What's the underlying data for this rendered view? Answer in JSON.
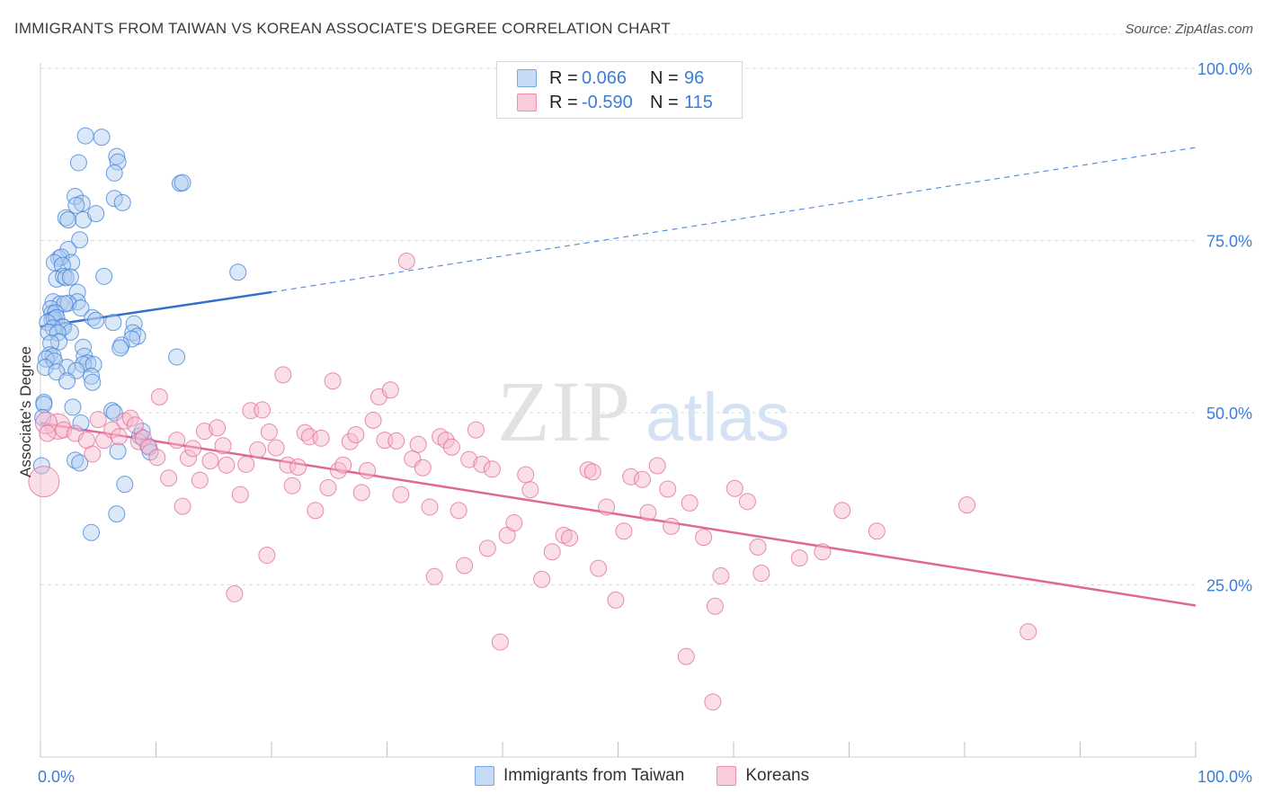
{
  "header": {
    "title": "IMMIGRANTS FROM TAIWAN VS KOREAN ASSOCIATE'S DEGREE CORRELATION CHART",
    "source": "Source: ZipAtlas.com"
  },
  "watermark": {
    "zip": "ZIP",
    "atlas": "atlas"
  },
  "legend": {
    "r_label": "R =",
    "n_label": "N =",
    "rows": [
      {
        "r": "0.066",
        "n": "96",
        "color": "#7aa6e0",
        "fill": "#c6dbf5"
      },
      {
        "r": "-0.590",
        "n": "115",
        "color": "#eb8fac",
        "fill": "#f9ccda"
      }
    ]
  },
  "bottom_legend": {
    "items": [
      {
        "label": "Immigrants from Taiwan",
        "color": "#7aa6e0",
        "fill": "#c6dbf5"
      },
      {
        "label": "Koreans",
        "color": "#eb8fac",
        "fill": "#f9ccda"
      }
    ]
  },
  "chart_data": {
    "type": "scatter",
    "ylabel": "Associate's Degree",
    "xlabel": "",
    "xlim": [
      0,
      100
    ],
    "ylim": [
      0,
      105
    ],
    "x_tick_labels": [
      "0.0%",
      "100.0%"
    ],
    "y_ticks": [
      25,
      50,
      75,
      100
    ],
    "y_tick_labels": [
      "25.0%",
      "50.0%",
      "75.0%",
      "100.0%"
    ],
    "grid": "horizontal dashed",
    "legend_position": "top-center",
    "series": [
      {
        "name": "Immigrants from Taiwan",
        "color": "#3b7dd8",
        "fill": "#aecbef",
        "stats": {
          "R": 0.066,
          "N": 96
        },
        "trend": {
          "x0": 0,
          "y0": 62.5,
          "x1": 20,
          "y1": 67.5,
          "x_extend": 100,
          "y_extend": 88.5
        },
        "points": [
          [
            5.3,
            90.0
          ],
          [
            3.9,
            90.2
          ],
          [
            6.6,
            87.2
          ],
          [
            3.3,
            86.3
          ],
          [
            6.7,
            86.4
          ],
          [
            6.4,
            84.8
          ],
          [
            12.1,
            83.3
          ],
          [
            12.3,
            83.4
          ],
          [
            3.0,
            81.4
          ],
          [
            6.4,
            81.1
          ],
          [
            7.1,
            80.5
          ],
          [
            3.6,
            80.4
          ],
          [
            3.1,
            80.1
          ],
          [
            2.2,
            78.3
          ],
          [
            2.4,
            78.0
          ],
          [
            3.7,
            78.0
          ],
          [
            4.8,
            78.9
          ],
          [
            3.4,
            75.1
          ],
          [
            2.4,
            73.7
          ],
          [
            1.6,
            72.4
          ],
          [
            1.8,
            72.6
          ],
          [
            1.2,
            71.8
          ],
          [
            2.7,
            71.8
          ],
          [
            1.9,
            71.4
          ],
          [
            17.1,
            70.4
          ],
          [
            5.5,
            69.8
          ],
          [
            1.4,
            69.4
          ],
          [
            2.0,
            69.8
          ],
          [
            2.2,
            69.6
          ],
          [
            2.6,
            69.7
          ],
          [
            3.2,
            67.5
          ],
          [
            1.1,
            66.1
          ],
          [
            3.2,
            66.1
          ],
          [
            1.7,
            65.8
          ],
          [
            2.4,
            65.9
          ],
          [
            0.9,
            65.1
          ],
          [
            2.1,
            65.8
          ],
          [
            3.5,
            65.2
          ],
          [
            1.0,
            64.4
          ],
          [
            1.3,
            64.5
          ],
          [
            1.0,
            63.5
          ],
          [
            1.2,
            63.6
          ],
          [
            1.4,
            63.8
          ],
          [
            0.6,
            63.1
          ],
          [
            4.5,
            63.8
          ],
          [
            4.8,
            63.4
          ],
          [
            6.3,
            63.1
          ],
          [
            8.1,
            62.9
          ],
          [
            1.9,
            62.5
          ],
          [
            2.0,
            62.4
          ],
          [
            1.1,
            62.3
          ],
          [
            0.7,
            61.7
          ],
          [
            8.0,
            61.6
          ],
          [
            2.6,
            61.7
          ],
          [
            1.5,
            61.6
          ],
          [
            8.4,
            61.1
          ],
          [
            7.9,
            60.7
          ],
          [
            1.6,
            60.3
          ],
          [
            0.9,
            60.1
          ],
          [
            3.7,
            59.5
          ],
          [
            7.0,
            59.8
          ],
          [
            6.9,
            59.4
          ],
          [
            0.8,
            58.4
          ],
          [
            1.1,
            58.2
          ],
          [
            3.8,
            58.2
          ],
          [
            11.8,
            58.1
          ],
          [
            0.5,
            57.8
          ],
          [
            1.2,
            57.5
          ],
          [
            4.1,
            57.2
          ],
          [
            3.7,
            57.0
          ],
          [
            4.6,
            57.0
          ],
          [
            0.4,
            56.6
          ],
          [
            2.3,
            56.6
          ],
          [
            3.1,
            56.1
          ],
          [
            1.4,
            55.9
          ],
          [
            4.4,
            55.3
          ],
          [
            2.3,
            54.6
          ],
          [
            4.5,
            54.4
          ],
          [
            0.3,
            51.5
          ],
          [
            0.3,
            51.2
          ],
          [
            2.8,
            50.8
          ],
          [
            6.2,
            50.3
          ],
          [
            6.4,
            50.0
          ],
          [
            0.2,
            49.3
          ],
          [
            3.5,
            48.5
          ],
          [
            8.6,
            46.6
          ],
          [
            9.3,
            45.2
          ],
          [
            9.5,
            44.3
          ],
          [
            6.7,
            44.4
          ],
          [
            3.0,
            43.1
          ],
          [
            3.4,
            42.7
          ],
          [
            0.1,
            42.3
          ],
          [
            7.3,
            39.6
          ],
          [
            6.6,
            35.3
          ],
          [
            4.4,
            32.6
          ],
          [
            8.8,
            47.3
          ]
        ]
      },
      {
        "name": "Koreans",
        "color": "#e06895",
        "fill": "#f6b9cc",
        "stats": {
          "R": -0.59,
          "N": 115
        },
        "trend": {
          "x0": 0,
          "y0": 48.5,
          "x1": 100,
          "y1": 22.0
        },
        "points": [
          [
            0.3,
            40.0
          ],
          [
            1.5,
            48.0
          ],
          [
            0.5,
            48.5
          ],
          [
            2.0,
            47.5
          ],
          [
            3.0,
            47.0
          ],
          [
            4.0,
            46.0
          ],
          [
            4.5,
            44.0
          ],
          [
            5.0,
            49.0
          ],
          [
            5.5,
            46.0
          ],
          [
            6.2,
            47.5
          ],
          [
            6.8,
            46.5
          ],
          [
            7.3,
            48.8
          ],
          [
            7.8,
            49.2
          ],
          [
            8.2,
            48.2
          ],
          [
            8.5,
            45.8
          ],
          [
            8.9,
            46.3
          ],
          [
            9.4,
            45.0
          ],
          [
            10.1,
            43.5
          ],
          [
            10.3,
            52.3
          ],
          [
            11.1,
            40.5
          ],
          [
            11.8,
            46.0
          ],
          [
            12.3,
            36.4
          ],
          [
            12.8,
            43.4
          ],
          [
            13.2,
            44.8
          ],
          [
            13.8,
            40.2
          ],
          [
            14.2,
            47.3
          ],
          [
            14.7,
            43.0
          ],
          [
            15.3,
            47.8
          ],
          [
            15.8,
            45.2
          ],
          [
            16.1,
            42.4
          ],
          [
            16.8,
            23.7
          ],
          [
            17.3,
            38.1
          ],
          [
            17.8,
            42.5
          ],
          [
            18.2,
            50.3
          ],
          [
            18.8,
            44.6
          ],
          [
            19.2,
            50.4
          ],
          [
            19.6,
            29.3
          ],
          [
            19.8,
            47.2
          ],
          [
            20.4,
            44.9
          ],
          [
            21.0,
            55.5
          ],
          [
            21.4,
            42.4
          ],
          [
            21.8,
            39.4
          ],
          [
            22.3,
            42.1
          ],
          [
            22.9,
            47.1
          ],
          [
            23.3,
            46.5
          ],
          [
            23.8,
            35.8
          ],
          [
            24.3,
            46.3
          ],
          [
            24.9,
            39.1
          ],
          [
            25.3,
            54.6
          ],
          [
            25.8,
            41.6
          ],
          [
            26.2,
            42.4
          ],
          [
            26.8,
            45.8
          ],
          [
            27.3,
            46.8
          ],
          [
            27.8,
            38.4
          ],
          [
            28.3,
            41.6
          ],
          [
            28.8,
            48.9
          ],
          [
            29.3,
            52.3
          ],
          [
            29.8,
            46.0
          ],
          [
            30.3,
            53.3
          ],
          [
            30.8,
            45.9
          ],
          [
            31.2,
            38.1
          ],
          [
            31.7,
            72.0
          ],
          [
            32.2,
            43.3
          ],
          [
            32.7,
            45.4
          ],
          [
            33.1,
            42.0
          ],
          [
            33.7,
            36.3
          ],
          [
            34.1,
            26.2
          ],
          [
            34.6,
            46.5
          ],
          [
            35.1,
            46.0
          ],
          [
            35.6,
            45.0
          ],
          [
            36.2,
            35.8
          ],
          [
            36.7,
            27.8
          ],
          [
            37.1,
            43.2
          ],
          [
            37.7,
            47.5
          ],
          [
            38.2,
            42.5
          ],
          [
            38.7,
            30.3
          ],
          [
            39.1,
            41.8
          ],
          [
            39.8,
            16.7
          ],
          [
            40.4,
            32.2
          ],
          [
            41.0,
            34.0
          ],
          [
            42.0,
            41.0
          ],
          [
            42.4,
            38.8
          ],
          [
            43.4,
            25.8
          ],
          [
            44.3,
            29.8
          ],
          [
            45.3,
            32.2
          ],
          [
            45.8,
            31.8
          ],
          [
            47.4,
            41.7
          ],
          [
            47.8,
            41.4
          ],
          [
            48.3,
            27.4
          ],
          [
            49.0,
            36.3
          ],
          [
            49.8,
            22.8
          ],
          [
            50.5,
            32.8
          ],
          [
            51.1,
            40.7
          ],
          [
            52.1,
            40.3
          ],
          [
            52.6,
            35.5
          ],
          [
            53.4,
            42.3
          ],
          [
            54.3,
            38.9
          ],
          [
            54.6,
            33.5
          ],
          [
            55.9,
            14.6
          ],
          [
            56.2,
            36.9
          ],
          [
            57.4,
            31.9
          ],
          [
            58.2,
            8.0
          ],
          [
            58.4,
            21.9
          ],
          [
            58.9,
            26.3
          ],
          [
            60.1,
            39.0
          ],
          [
            61.2,
            37.1
          ],
          [
            62.1,
            30.5
          ],
          [
            62.4,
            26.7
          ],
          [
            65.7,
            28.9
          ],
          [
            67.7,
            29.8
          ],
          [
            69.4,
            35.8
          ],
          [
            72.4,
            32.8
          ],
          [
            80.2,
            36.6
          ],
          [
            85.5,
            18.2
          ],
          [
            0.6,
            47.0
          ]
        ]
      }
    ]
  }
}
